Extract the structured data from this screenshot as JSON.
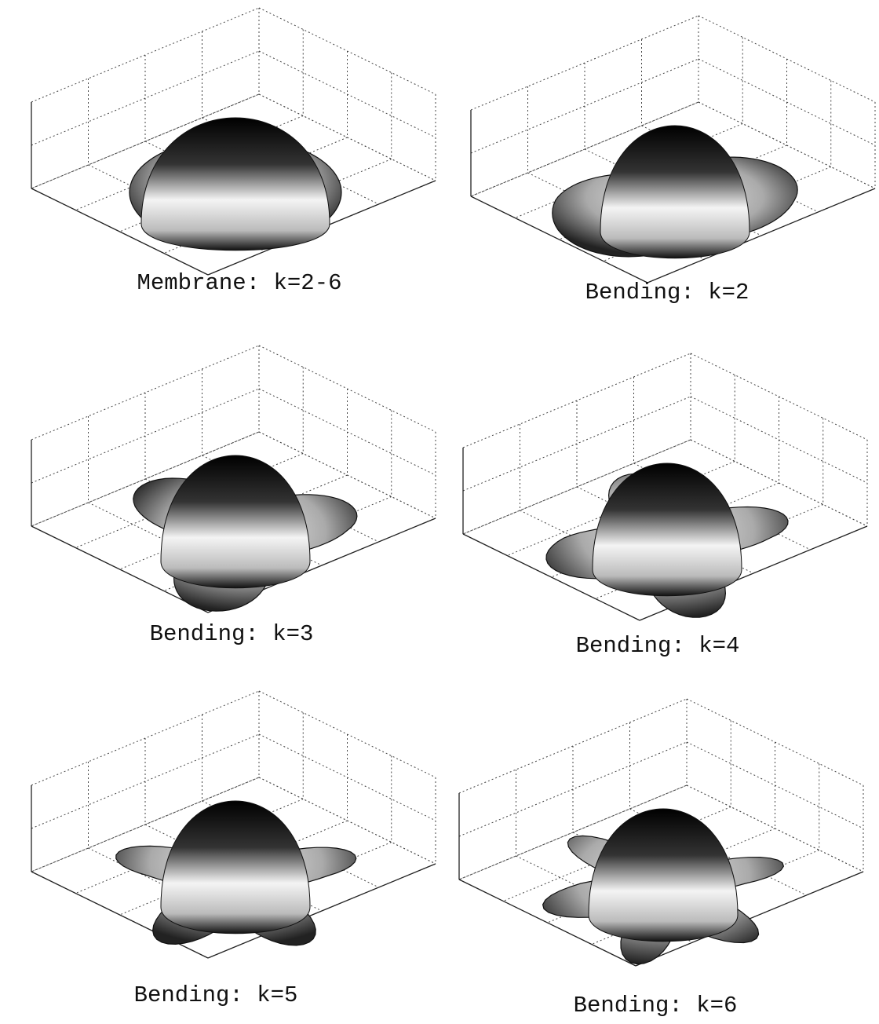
{
  "panels": [
    {
      "caption": "Membrane: k=2-6"
    },
    {
      "caption": "Bending: k=2"
    },
    {
      "caption": "Bending: k=3"
    },
    {
      "caption": "Bending: k=4"
    },
    {
      "caption": "Bending: k=5"
    },
    {
      "caption": "Bending: k=6"
    }
  ]
}
